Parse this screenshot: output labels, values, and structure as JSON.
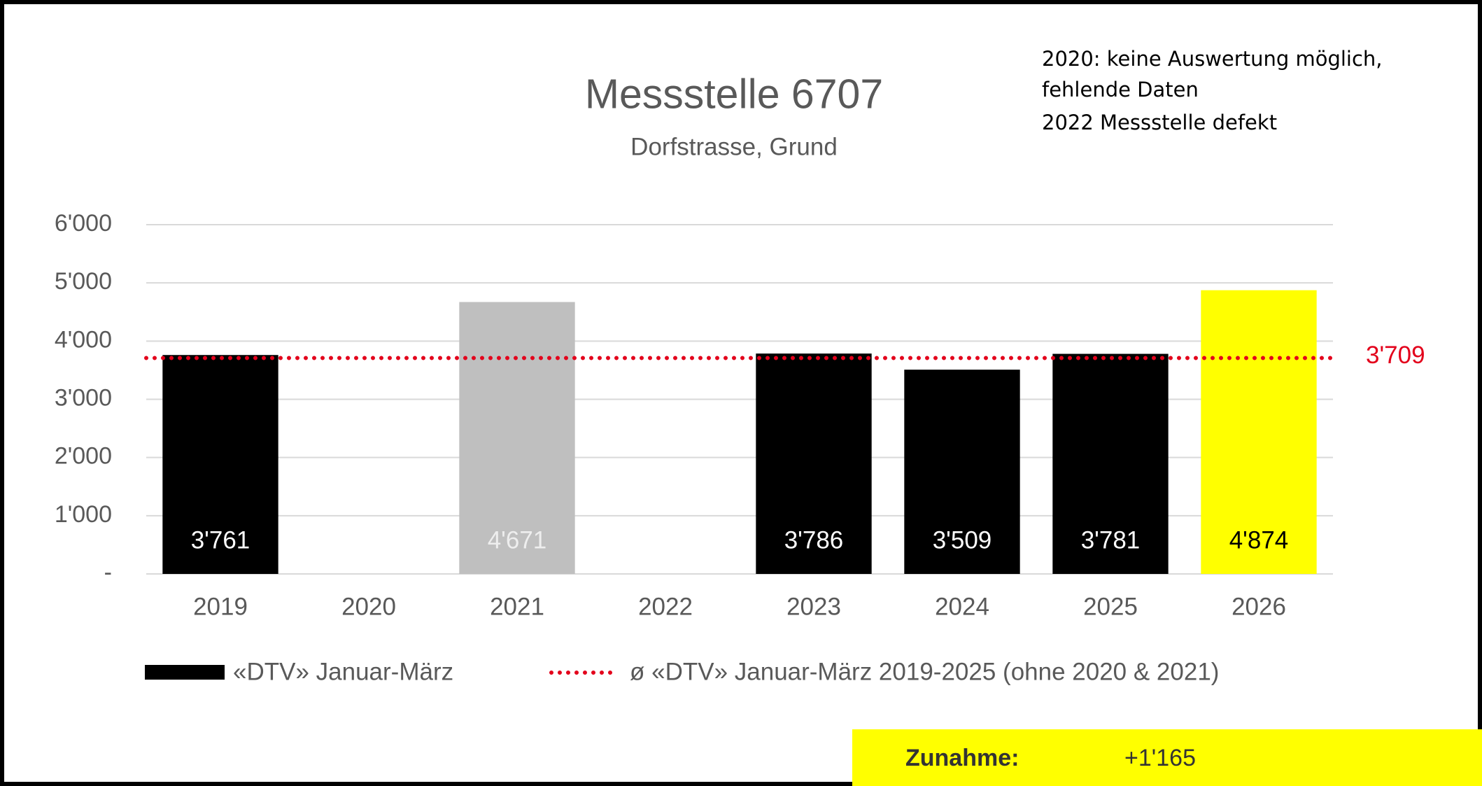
{
  "chart_data": {
    "type": "bar",
    "title": "Messstelle 6707",
    "subtitle": "Dorfstrasse, Grund",
    "annotation": [
      "2020: keine Auswertung möglich,",
      "fehlende Daten",
      "2022 Messstelle defekt"
    ],
    "categories": [
      "2019",
      "2020",
      "2021",
      "2022",
      "2023",
      "2024",
      "2025",
      "2026"
    ],
    "series": [
      {
        "name": "«DTV» Januar-März",
        "color": "#000000",
        "colors": [
          "#000000",
          "#000000",
          "#bfbfbf",
          "#000000",
          "#000000",
          "#000000",
          "#000000",
          "#ffff00"
        ],
        "label_colors": [
          "#ffffff",
          "#ffffff",
          "#eeeeee",
          "#ffffff",
          "#ffffff",
          "#ffffff",
          "#ffffff",
          "#000000"
        ],
        "values": [
          3761,
          null,
          4671,
          null,
          3786,
          3509,
          3781,
          4874
        ],
        "value_labels": [
          "3'761",
          null,
          "4'671",
          null,
          "3'786",
          "3'509",
          "3'781",
          "4'874"
        ]
      }
    ],
    "reference_line": {
      "name": "ø «DTV» Januar-März 2019-2025 (ohne 2020 & 2021)",
      "value": 3709,
      "label": "3'709",
      "color": "#e3001b"
    },
    "ylim": [
      0,
      6000
    ],
    "yticks": [
      {
        "value": 0,
        "label": "-"
      },
      {
        "value": 1000,
        "label": "1'000"
      },
      {
        "value": 2000,
        "label": "2'000"
      },
      {
        "value": 3000,
        "label": "3'000"
      },
      {
        "value": 4000,
        "label": "4'000"
      },
      {
        "value": 5000,
        "label": "5'000"
      },
      {
        "value": 6000,
        "label": "6'000"
      }
    ],
    "grid": true
  },
  "summary": {
    "label": "Zunahme:",
    "value": "+1'165",
    "color": "#ffff00"
  }
}
